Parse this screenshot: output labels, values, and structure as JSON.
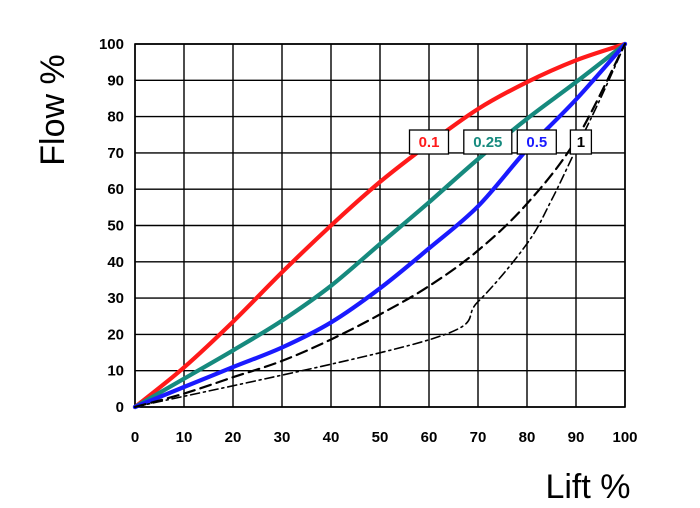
{
  "chart_data": {
    "type": "line",
    "xlabel": "Lift %",
    "ylabel": "Flow %",
    "xlim": [
      0,
      100
    ],
    "ylim": [
      0,
      100
    ],
    "xticks": [
      0,
      10,
      20,
      30,
      40,
      50,
      60,
      70,
      80,
      90,
      100
    ],
    "yticks": [
      0,
      10,
      20,
      30,
      40,
      50,
      60,
      70,
      80,
      90,
      100
    ],
    "grid": true,
    "series": [
      {
        "name": "0.1",
        "color": "#ff1a1a",
        "line_style": "solid",
        "x": [
          0,
          10,
          20,
          30,
          40,
          50,
          60,
          70,
          80,
          90,
          100
        ],
        "y": [
          0,
          10.9,
          23.5,
          37.1,
          50.0,
          62.0,
          72.5,
          82.1,
          89.5,
          95.5,
          100
        ]
      },
      {
        "name": "0.25",
        "color": "#168a7e",
        "line_style": "solid",
        "x": [
          0,
          10,
          20,
          30,
          40,
          50,
          60,
          70,
          80,
          90,
          100
        ],
        "y": [
          0,
          7.8,
          15.6,
          23.8,
          33.4,
          44.9,
          56.4,
          68.3,
          79.4,
          89.5,
          100
        ]
      },
      {
        "name": "0.5",
        "color": "#1a1aff",
        "line_style": "solid",
        "x": [
          0,
          10,
          20,
          30,
          40,
          50,
          60,
          70,
          80,
          90,
          100
        ],
        "y": [
          0,
          5.5,
          11.0,
          16.4,
          23.3,
          32.7,
          43.7,
          55.3,
          70.9,
          84.7,
          100
        ]
      },
      {
        "name": "1",
        "color": "#000000",
        "line_style": "dash",
        "x": [
          0,
          10,
          20,
          30,
          40,
          50,
          60,
          70,
          80,
          90,
          100
        ],
        "y": [
          0,
          3.7,
          8.2,
          12.7,
          18.6,
          25.5,
          33.3,
          43.1,
          56.0,
          73.6,
          100
        ]
      },
      {
        "name": "",
        "color": "#000000",
        "line_style": "dashdot",
        "x": [
          0,
          60,
          70,
          80,
          85,
          90,
          95,
          100
        ],
        "y": [
          0,
          18.5,
          29.0,
          45.0,
          57.0,
          71.0,
          85.0,
          100
        ]
      }
    ],
    "labels": [
      {
        "text": "0.1",
        "color": "#ff1a1a",
        "x": 60,
        "y": 73
      },
      {
        "text": "0.25",
        "color": "#168a7e",
        "x": 72,
        "y": 73
      },
      {
        "text": "0.5",
        "color": "#1a1aff",
        "x": 82,
        "y": 73
      },
      {
        "text": "1",
        "color": "#000000",
        "x": 91,
        "y": 73
      }
    ]
  }
}
